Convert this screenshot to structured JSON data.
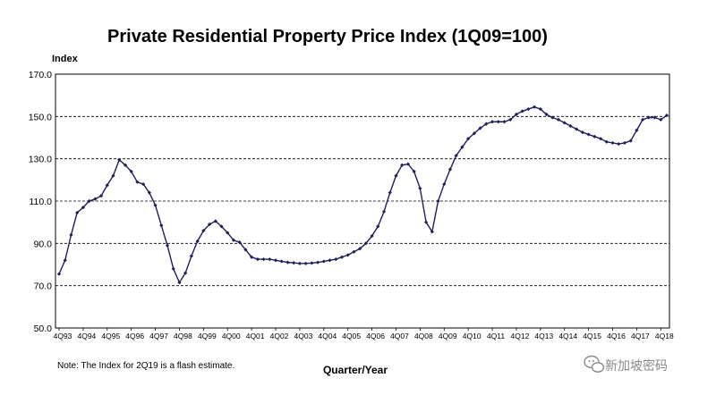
{
  "chart_data": {
    "type": "line",
    "title": "Private Residential Property Price Index (1Q09=100)",
    "ylabel": "Index",
    "xlabel": "Quarter/Year",
    "ylim": [
      50.0,
      170.0
    ],
    "yticks": [
      "50.0",
      "70.0",
      "90.0",
      "110.0",
      "130.0",
      "150.0",
      "170.0"
    ],
    "grid": "horizontal dashed",
    "x_tick_labels": [
      "4Q93",
      "4Q94",
      "4Q95",
      "4Q96",
      "4Q97",
      "4Q98",
      "4Q99",
      "4Q00",
      "4Q01",
      "4Q02",
      "4Q03",
      "4Q04",
      "4Q05",
      "4Q06",
      "4Q07",
      "4Q08",
      "4Q09",
      "4Q10",
      "4Q11",
      "4Q12",
      "4Q13",
      "4Q14",
      "4Q15",
      "4Q16",
      "4Q17",
      "4Q18"
    ],
    "line_color": "#1f1f5a",
    "series": [
      {
        "values": [
          75.5,
          82,
          94,
          104.5,
          107,
          110,
          111,
          112.5,
          117.5,
          122,
          129.5,
          127,
          124,
          119,
          118,
          114,
          108,
          98.5,
          89,
          78,
          71.5,
          76,
          84,
          91,
          96,
          99,
          100.5,
          98,
          95,
          91.5,
          90.5,
          87,
          83.5,
          82.5,
          82.5,
          82.5,
          82,
          81.5,
          81,
          80.8,
          80.5,
          80.5,
          80.7,
          81,
          81.5,
          82,
          82.5,
          83.5,
          84.5,
          86,
          87.5,
          90,
          93.5,
          98,
          105,
          114,
          122,
          127,
          127.5,
          124,
          116,
          100,
          95.5,
          110,
          118,
          125,
          131.5,
          135.5,
          139.5,
          142,
          144.5,
          146.5,
          147.5,
          147.5,
          147.5,
          148.5,
          151,
          152.5,
          153.5,
          154.5,
          153.5,
          151,
          149.5,
          148.5,
          147,
          145.5,
          144,
          142.5,
          141.5,
          140.5,
          139.5,
          138,
          137.5,
          137,
          137.5,
          138.5,
          143.5,
          148.5,
          149.5,
          149.5,
          148.5,
          150.5
        ]
      }
    ],
    "note": "Note: The Index for 2Q19 is a flash estimate."
  },
  "watermark": "新加坡密码"
}
